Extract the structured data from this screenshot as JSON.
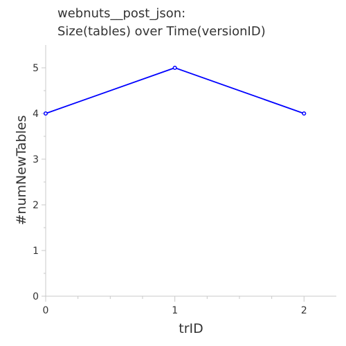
{
  "chart_data": {
    "type": "line",
    "title": [
      "webnuts__post_json:",
      "Size(tables) over Time(versionID)"
    ],
    "xlabel": "trID",
    "ylabel": "#numNewTables",
    "x": [
      0,
      1,
      2
    ],
    "xlim": [
      0,
      2.25
    ],
    "ylim": [
      0,
      5.5
    ],
    "x_ticks": [
      "0",
      "1",
      "2"
    ],
    "y_ticks": [
      "0",
      "1",
      "2",
      "3",
      "4",
      "5"
    ],
    "series": [
      {
        "x": [
          0,
          1,
          2
        ],
        "values": [
          4,
          5,
          4
        ],
        "color": "#0000ff"
      }
    ],
    "grid": false,
    "legend": "none"
  }
}
